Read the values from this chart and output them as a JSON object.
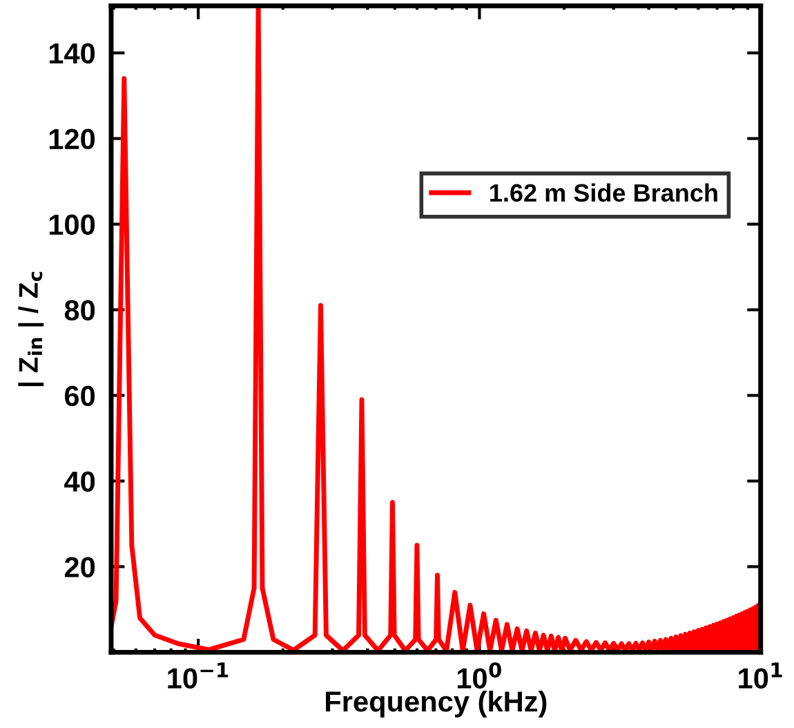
{
  "chart_data": {
    "type": "line",
    "xlabel": "Frequency (kHz)",
    "ylabel": "| Z$_{in}$ | / Z$_{c}$",
    "log": "x",
    "xlim": [
      0.049,
      10
    ],
    "xticks": [
      {
        "value": 0.1,
        "label": "10$^{−1}$"
      },
      {
        "value": 1,
        "label": "10$^{0}$"
      },
      {
        "value": 10,
        "label": "10$^{1}$"
      }
    ],
    "ylim": [
      0,
      151
    ],
    "yticks": [
      20,
      40,
      60,
      80,
      100,
      120,
      140
    ],
    "grid": false,
    "legend": "top right",
    "marker": "none",
    "line_style": "solid",
    "series": [
      {
        "name": "1.62 m Side Branch",
        "color": "#ff0000",
        "x": [
          0.049,
          0.051,
          0.0545,
          0.058,
          0.062,
          0.07,
          0.085,
          0.109,
          0.145,
          0.158,
          0.1635,
          0.169,
          0.185,
          0.218,
          0.26,
          0.2725,
          0.285,
          0.327,
          0.372,
          0.3815,
          0.391,
          0.436,
          0.483,
          0.4905,
          0.498,
          0.545,
          0.592,
          0.5995,
          0.607,
          0.654,
          0.701,
          0.7085,
          0.716,
          0.763,
          0.8175,
          0.872,
          0.9265,
          0.981,
          1.0355,
          1.09,
          1.1445,
          1.199,
          1.2535,
          1.308,
          1.3625,
          1.417,
          1.4715,
          1.526,
          1.5805,
          1.635,
          1.6895,
          1.744,
          1.7985,
          1.853,
          1.9075,
          1.962,
          2.0165,
          2.1,
          2.2,
          2.3,
          2.4,
          2.5,
          2.6,
          2.7,
          2.8,
          2.9,
          3.0,
          3.1,
          3.2,
          3.3,
          3.4,
          3.5,
          3.6,
          3.7,
          3.8,
          3.9,
          4.0,
          4.1,
          4.2,
          4.3,
          4.4,
          4.5,
          4.6,
          4.7,
          4.8,
          4.9,
          5.0,
          5.1,
          5.2,
          5.3,
          5.4,
          5.5,
          5.6,
          5.7,
          5.8,
          5.9,
          6.0,
          6.1,
          6.2,
          6.3,
          6.4,
          6.5,
          6.6,
          6.7,
          6.8,
          6.9,
          7.0,
          7.1,
          7.2,
          7.3,
          7.4,
          7.5,
          7.6,
          7.7,
          7.8,
          7.9,
          8.0,
          8.1,
          8.2,
          8.3,
          8.4,
          8.5,
          8.6,
          8.7,
          8.8,
          8.9,
          9.0,
          9.1,
          9.2,
          9.3,
          9.4,
          9.5,
          9.6,
          9.7,
          9.8,
          9.9,
          10.0
        ],
        "values": [
          6,
          12,
          134,
          25,
          8,
          4,
          2,
          0.6,
          3,
          15,
          151,
          15,
          3,
          0.5,
          4,
          81,
          4,
          0.4,
          4,
          59,
          4,
          0.4,
          4,
          35,
          4,
          0.4,
          3,
          25,
          3,
          0.4,
          3,
          18,
          3,
          0.4,
          14,
          0.4,
          11,
          0.4,
          9,
          0.4,
          7.5,
          0.4,
          6.5,
          0.4,
          5.5,
          0.4,
          5,
          0.4,
          4.5,
          0.4,
          4,
          0.4,
          3.8,
          0.4,
          3.5,
          0.4,
          3.3,
          0.5,
          2.8,
          0.5,
          2.5,
          0.5,
          2.3,
          0.5,
          2.2,
          0.5,
          2.1,
          0.5,
          2,
          0.5,
          2,
          0.5,
          2.1,
          0.5,
          2.2,
          0.5,
          2.4,
          0.5,
          2.6,
          0.5,
          2.8,
          0.5,
          3,
          0.5,
          3.3,
          0.5,
          3.6,
          0.5,
          3.9,
          0.5,
          4.2,
          0.5,
          4.5,
          0.5,
          4.8,
          0.5,
          5.1,
          0.5,
          5.4,
          0.5,
          5.7,
          0.5,
          6,
          0.5,
          6.3,
          0.5,
          6.6,
          0.5,
          6.9,
          0.5,
          7.2,
          0.5,
          7.5,
          0.5,
          7.8,
          0.5,
          8.1,
          0.5,
          8.4,
          0.5,
          8.7,
          0.5,
          9,
          0.5,
          9.3,
          0.5,
          9.6,
          0.5,
          9.9,
          0.5,
          10.2,
          0.5,
          10.5,
          0.5,
          10.9,
          0.5,
          11.3
        ]
      }
    ]
  }
}
